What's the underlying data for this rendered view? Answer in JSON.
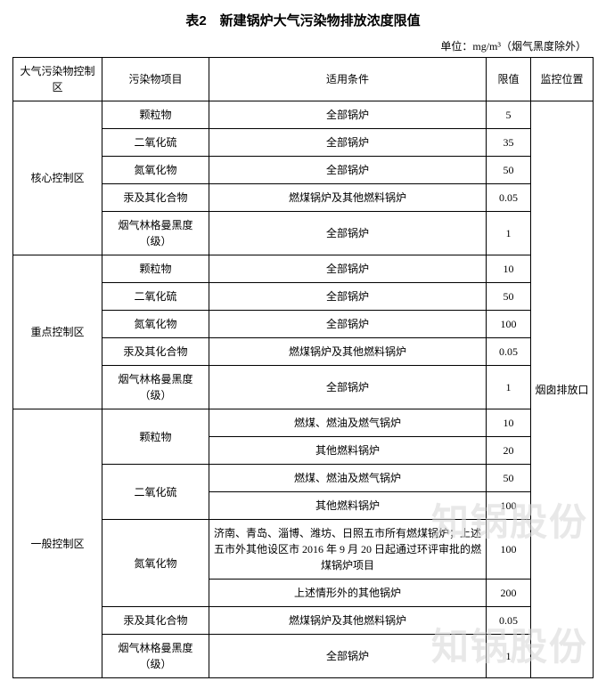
{
  "title": "表2　新建锅炉大气污染物排放浓度限值",
  "unit": "单位：mg/m³（烟气黑度除外）",
  "headers": {
    "zone": "大气污染物控制区",
    "pollutant": "污染物项目",
    "condition": "适用条件",
    "limit": "限值",
    "location": "监控位置"
  },
  "location_value": "烟囱排放口",
  "zones": [
    {
      "name": "核心控制区",
      "rows": [
        {
          "pollutant": "颗粒物",
          "condition": "全部锅炉",
          "limit": "5"
        },
        {
          "pollutant": "二氧化硫",
          "condition": "全部锅炉",
          "limit": "35"
        },
        {
          "pollutant": "氮氧化物",
          "condition": "全部锅炉",
          "limit": "50"
        },
        {
          "pollutant": "汞及其化合物",
          "condition": "燃煤锅炉及其他燃料锅炉",
          "limit": "0.05"
        },
        {
          "pollutant": "烟气林格曼黑度（级）",
          "condition": "全部锅炉",
          "limit": "1"
        }
      ]
    },
    {
      "name": "重点控制区",
      "rows": [
        {
          "pollutant": "颗粒物",
          "condition": "全部锅炉",
          "limit": "10"
        },
        {
          "pollutant": "二氧化硫",
          "condition": "全部锅炉",
          "limit": "50"
        },
        {
          "pollutant": "氮氧化物",
          "condition": "全部锅炉",
          "limit": "100"
        },
        {
          "pollutant": "汞及其化合物",
          "condition": "燃煤锅炉及其他燃料锅炉",
          "limit": "0.05"
        },
        {
          "pollutant": "烟气林格曼黑度（级）",
          "condition": "全部锅炉",
          "limit": "1"
        }
      ]
    },
    {
      "name": "一般控制区",
      "rows": [
        {
          "pollutant": "颗粒物",
          "pollutant_rowspan": 2,
          "condition": "燃煤、燃油及燃气锅炉",
          "limit": "10"
        },
        {
          "condition": "其他燃料锅炉",
          "limit": "20"
        },
        {
          "pollutant": "二氧化硫",
          "pollutant_rowspan": 2,
          "condition": "燃煤、燃油及燃气锅炉",
          "limit": "50"
        },
        {
          "condition": "其他燃料锅炉",
          "limit": "100"
        },
        {
          "pollutant": "氮氧化物",
          "pollutant_rowspan": 2,
          "condition": "济南、青岛、淄博、潍坊、日照五市所有燃煤锅炉；上述五市外其他设区市 2016 年 9 月 20 日起通过环评审批的燃煤锅炉项目",
          "limit": "100"
        },
        {
          "condition": "上述情形外的其他锅炉",
          "limit": "200"
        },
        {
          "pollutant": "汞及其化合物",
          "condition": "燃煤锅炉及其他燃料锅炉",
          "limit": "0.05"
        },
        {
          "pollutant": "烟气林格曼黑度（级）",
          "condition": "全部锅炉",
          "limit": "1"
        }
      ]
    }
  ],
  "watermark": "知锅股份"
}
